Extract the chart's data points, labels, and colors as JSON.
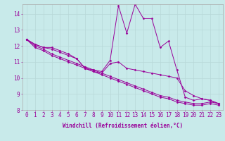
{
  "xlabel": "Windchill (Refroidissement éolien,°C)",
  "bg_color": "#c8eaea",
  "grid_color": "#b8d8d8",
  "line_color": "#990099",
  "xlim": [
    -0.5,
    23.5
  ],
  "ylim": [
    8.0,
    14.6
  ],
  "yticks": [
    8,
    9,
    10,
    11,
    12,
    13,
    14
  ],
  "xticks": [
    0,
    1,
    2,
    3,
    4,
    5,
    6,
    7,
    8,
    9,
    10,
    11,
    12,
    13,
    14,
    15,
    16,
    17,
    18,
    19,
    20,
    21,
    22,
    23
  ],
  "series": [
    [
      12.4,
      12.1,
      11.9,
      11.9,
      11.7,
      11.5,
      11.2,
      10.6,
      10.5,
      10.4,
      11.1,
      14.5,
      12.8,
      14.6,
      13.7,
      13.7,
      11.9,
      12.3,
      10.5,
      8.8,
      8.6,
      8.7,
      8.6,
      8.4
    ],
    [
      12.4,
      12.1,
      11.9,
      11.8,
      11.6,
      11.4,
      11.2,
      10.6,
      10.4,
      10.3,
      10.9,
      11.0,
      10.6,
      10.5,
      10.4,
      10.3,
      10.2,
      10.1,
      10.0,
      9.2,
      8.9,
      8.7,
      8.6,
      8.4
    ],
    [
      12.4,
      12.0,
      11.8,
      11.5,
      11.3,
      11.1,
      10.9,
      10.7,
      10.5,
      10.3,
      10.1,
      9.9,
      9.7,
      9.5,
      9.3,
      9.1,
      8.9,
      8.8,
      8.6,
      8.5,
      8.4,
      8.4,
      8.5,
      8.4
    ],
    [
      12.4,
      11.9,
      11.7,
      11.4,
      11.2,
      11.0,
      10.8,
      10.6,
      10.4,
      10.2,
      10.0,
      9.8,
      9.6,
      9.4,
      9.2,
      9.0,
      8.8,
      8.7,
      8.5,
      8.4,
      8.3,
      8.3,
      8.4,
      8.3
    ]
  ],
  "tick_fontsize": 5.5,
  "xlabel_fontsize": 5.5
}
